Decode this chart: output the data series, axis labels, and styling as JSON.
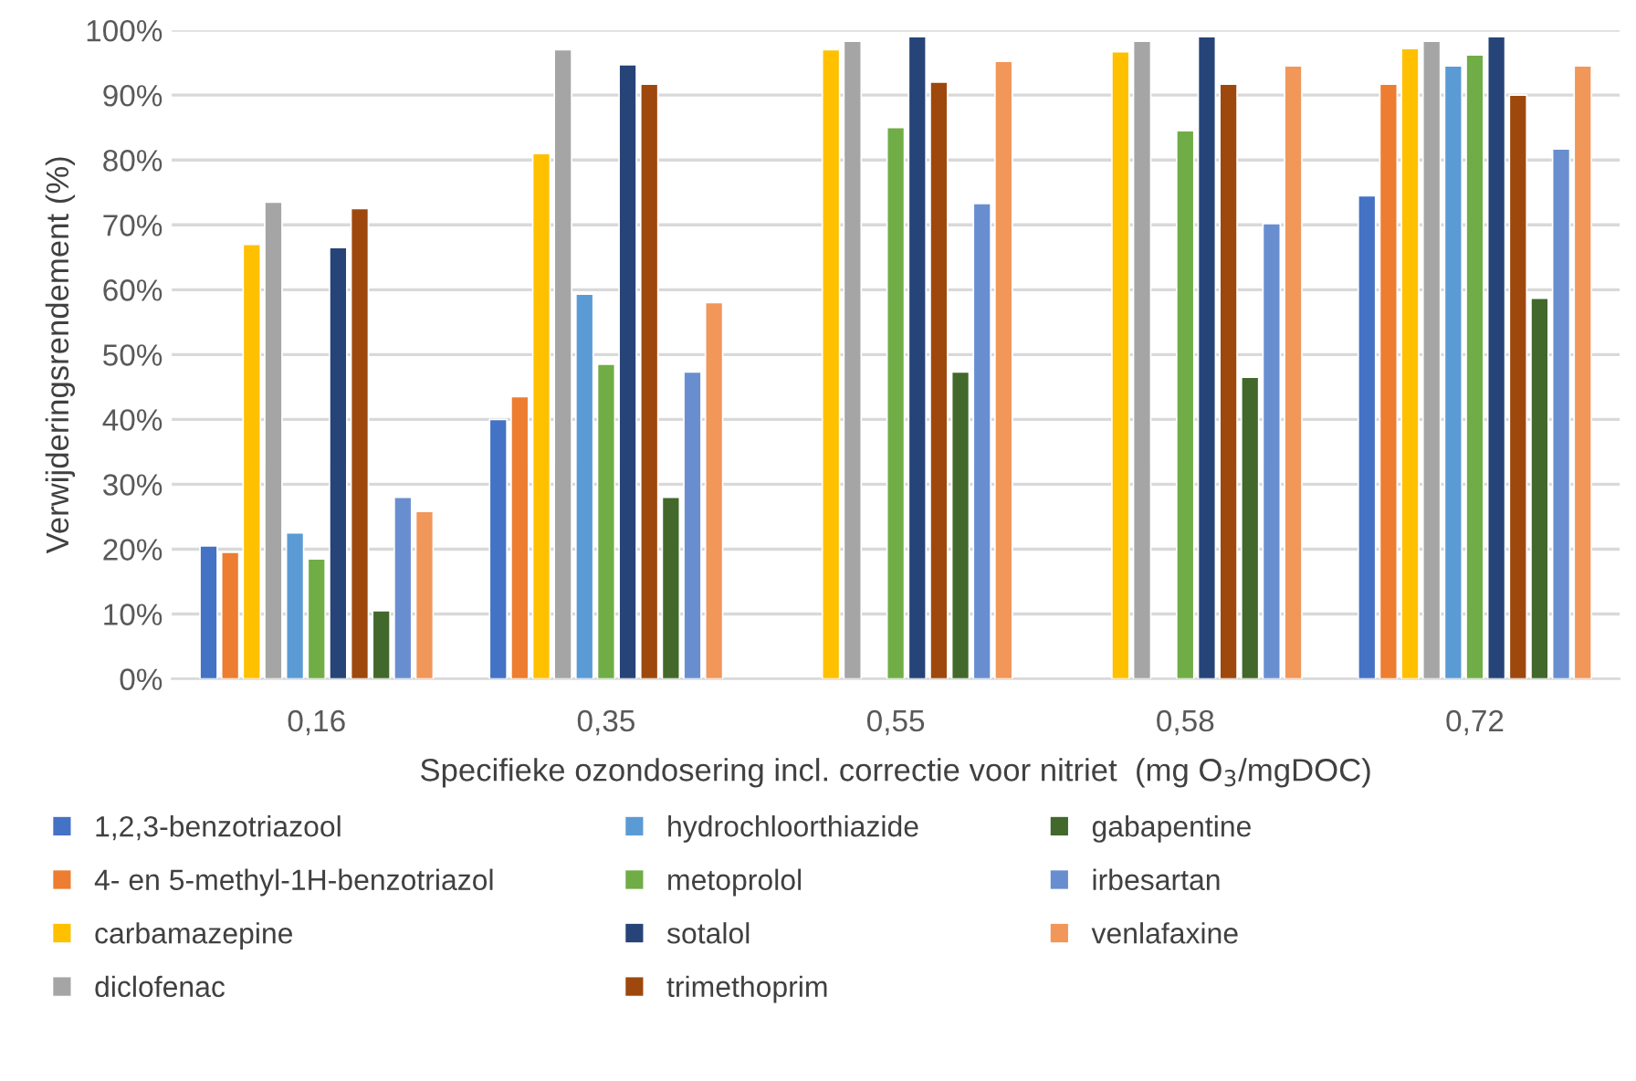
{
  "chart_data": {
    "type": "bar",
    "xlabel": "Specifieke ozondosering incl. correctie voor nitriet  (mg O$_{3}$/mgDOC)",
    "ylabel": "Verwijderingsrendement (%)",
    "categories": [
      "0,16",
      "0,35",
      "0,55",
      "0,58",
      "0,72"
    ],
    "ylim": [
      0,
      100
    ],
    "yticks": [
      {
        "value": 0,
        "label": "0%"
      },
      {
        "value": 10,
        "label": "10%"
      },
      {
        "value": 20,
        "label": "20%"
      },
      {
        "value": 30,
        "label": "30%"
      },
      {
        "value": 40,
        "label": "40%"
      },
      {
        "value": 50,
        "label": "50%"
      },
      {
        "value": 60,
        "label": "60%"
      },
      {
        "value": 70,
        "label": "70%"
      },
      {
        "value": 80,
        "label": "80%"
      },
      {
        "value": 90,
        "label": "90%"
      },
      {
        "value": 100,
        "label": "100%"
      }
    ],
    "grid": "y",
    "legend": "bottom",
    "series": [
      {
        "name": "1,2,3-benzotriazool",
        "color": "#4472c4",
        "values": [
          20.5,
          40,
          null,
          null,
          74.5
        ]
      },
      {
        "name": "4- en 5-methyl-1H-benzotriazol",
        "color": "#ed7d31",
        "values": [
          19.5,
          43.5,
          null,
          null,
          91.7
        ]
      },
      {
        "name": "carbamazepine",
        "color": "#ffc000",
        "values": [
          67,
          81,
          97,
          96.7,
          97.2
        ]
      },
      {
        "name": "diclofenac",
        "color": "#a5a5a5",
        "values": [
          73.5,
          97,
          98.3,
          98.3,
          98.3
        ]
      },
      {
        "name": "hydrochloorthiazide",
        "color": "#5b9bd5",
        "values": [
          22.5,
          59.3,
          null,
          null,
          94.5
        ]
      },
      {
        "name": "metoprolol",
        "color": "#70ad47",
        "values": [
          18.5,
          48.5,
          85,
          84.5,
          96.2
        ]
      },
      {
        "name": "sotalol",
        "color": "#264478",
        "values": [
          66.5,
          94.7,
          99,
          99,
          99
        ]
      },
      {
        "name": "trimethoprim",
        "color": "#9e480e",
        "values": [
          72.5,
          91.7,
          92,
          91.7,
          90
        ]
      },
      {
        "name": "gabapentine",
        "color": "#43682b",
        "values": [
          10.5,
          28,
          47.3,
          46.5,
          58.7
        ]
      },
      {
        "name": "irbesartan",
        "color": "#698ed0",
        "values": [
          28,
          47.3,
          73.3,
          70.2,
          81.7
        ]
      },
      {
        "name": "venlafaxine",
        "color": "#f1975a",
        "values": [
          25.8,
          58,
          95.2,
          94.5,
          94.5
        ]
      }
    ]
  }
}
